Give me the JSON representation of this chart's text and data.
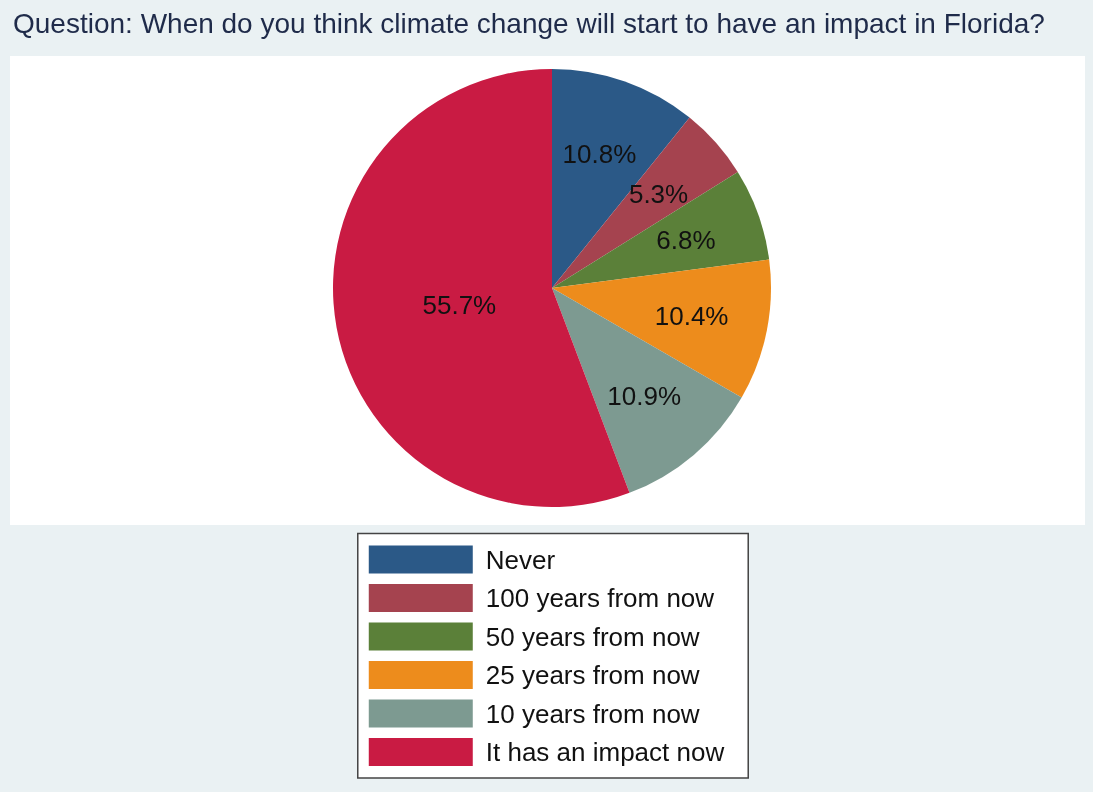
{
  "chart_data": {
    "type": "pie",
    "title": "Question: When do you think climate change will start to have an impact in Florida?",
    "categories": [
      "Never",
      "100 years from now",
      "50 years from now",
      "25 years from now",
      "10 years from now",
      "It has an impact now"
    ],
    "values": [
      10.8,
      5.3,
      6.8,
      10.4,
      10.9,
      55.7
    ],
    "colors": [
      "#2b5987",
      "#a5434f",
      "#5b8039",
      "#ed8c1c",
      "#7d9a91",
      "#c91b43"
    ],
    "value_labels": [
      "10.8%",
      "5.3%",
      "6.8%",
      "10.4%",
      "10.9%",
      "55.7%"
    ],
    "legend": "bottom"
  }
}
